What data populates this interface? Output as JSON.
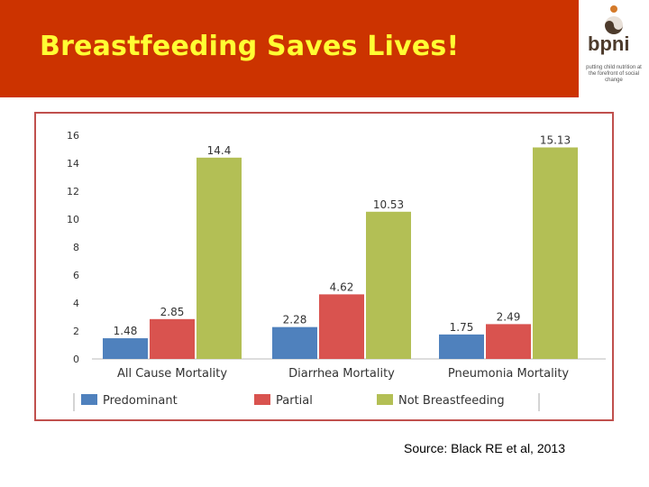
{
  "header": {
    "title": "Breastfeeding Saves Lives!",
    "bg_color": "#cc3300",
    "title_color": "#ffff33"
  },
  "logo": {
    "name": "bpni",
    "tagline": "putting child nutrition at the forefront of social change"
  },
  "chart_data": {
    "type": "bar",
    "categories": [
      "All Cause Mortality",
      "Diarrhea Mortality",
      "Pneumonia Mortality"
    ],
    "series": [
      {
        "name": "Predominant",
        "values": [
          1.48,
          2.28,
          1.75
        ],
        "color": "#4f81bd"
      },
      {
        "name": "Partial",
        "values": [
          2.85,
          4.62,
          2.49
        ],
        "color": "#d9534f"
      },
      {
        "name": "Not Breastfeeding",
        "values": [
          14.4,
          10.53,
          15.13
        ],
        "color": "#b3bf55"
      }
    ],
    "ylim": [
      0,
      16
    ],
    "yticks": [
      0,
      2,
      4,
      6,
      8,
      10,
      12,
      14,
      16
    ],
    "title": "",
    "xlabel": "",
    "ylabel": "",
    "legend_position": "bottom"
  },
  "footer": {
    "source": "Source: Black RE et al, 2013"
  }
}
